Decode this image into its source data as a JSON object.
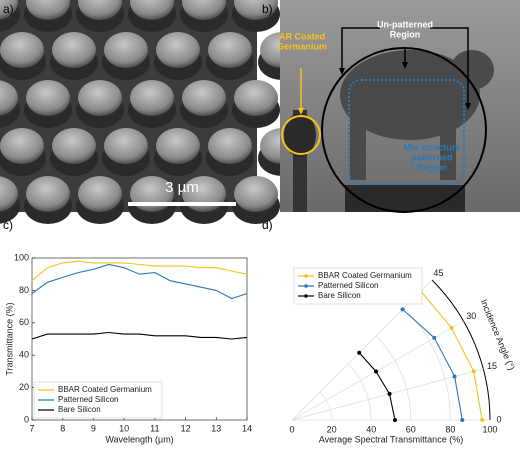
{
  "panels": {
    "a": {
      "label": "a)",
      "scale_bar": "3 µm"
    },
    "b": {
      "label": "b)",
      "unpatterned": [
        "Un-patterned",
        "Region"
      ],
      "ar_coated": [
        "AR Coated",
        "Germanium"
      ],
      "mie": [
        "Mie structure",
        "patterned",
        "Region"
      ]
    },
    "c": {
      "label": "c)"
    },
    "d": {
      "label": "d)"
    }
  },
  "chart_data": [
    {
      "type": "line",
      "xlabel": "Wavelength (µm)",
      "ylabel": "Transmittance (%)",
      "x": [
        7,
        7.5,
        8,
        8.5,
        9,
        9.5,
        10,
        10.5,
        11,
        11.5,
        12,
        12.5,
        13,
        13.5,
        14
      ],
      "xlim": [
        7,
        14
      ],
      "xticks": [
        7,
        8,
        9,
        10,
        11,
        12,
        13,
        14
      ],
      "ylim": [
        0,
        100
      ],
      "yticks": [
        0,
        20,
        40,
        60,
        80,
        100
      ],
      "legend": "lower left",
      "series": [
        {
          "name": "BBAR Coated Germanium",
          "color": "#f5c21b",
          "values": [
            86,
            94,
            97,
            98,
            97,
            97,
            97,
            96,
            95,
            95,
            95,
            94,
            94,
            92,
            90
          ]
        },
        {
          "name": "Patterned Silicon",
          "color": "#2a78b8",
          "values": [
            78,
            85,
            88,
            91,
            93,
            96,
            94,
            90,
            91,
            86,
            84,
            82,
            80,
            75,
            78
          ]
        },
        {
          "name": "Bare Silicon",
          "color": "#000000",
          "values": [
            50,
            53,
            53,
            53,
            53,
            54,
            53,
            53,
            52,
            52,
            52,
            51,
            51,
            50,
            51
          ]
        }
      ]
    },
    {
      "type": "polar",
      "xlabel": "Average Spectral Transmittance (%)",
      "theta_label": "Incidence Angle (°)",
      "theta": [
        0,
        15,
        30,
        45
      ],
      "thetalim": [
        0,
        45
      ],
      "thetaticks": [
        0,
        15,
        30,
        45
      ],
      "rlim": [
        0,
        100
      ],
      "rticks": [
        0,
        20,
        40,
        60,
        80,
        100
      ],
      "legend": "upper left",
      "series": [
        {
          "name": "BBAR Coated Germanium",
          "color": "#f5c21b",
          "values": [
            96,
            95,
            93,
            92
          ]
        },
        {
          "name": "Patterned Silicon",
          "color": "#2a78b8",
          "values": [
            86,
            85,
            83,
            79
          ]
        },
        {
          "name": "Bare Silicon",
          "color": "#000000",
          "values": [
            52,
            51,
            49,
            48
          ]
        }
      ]
    }
  ]
}
